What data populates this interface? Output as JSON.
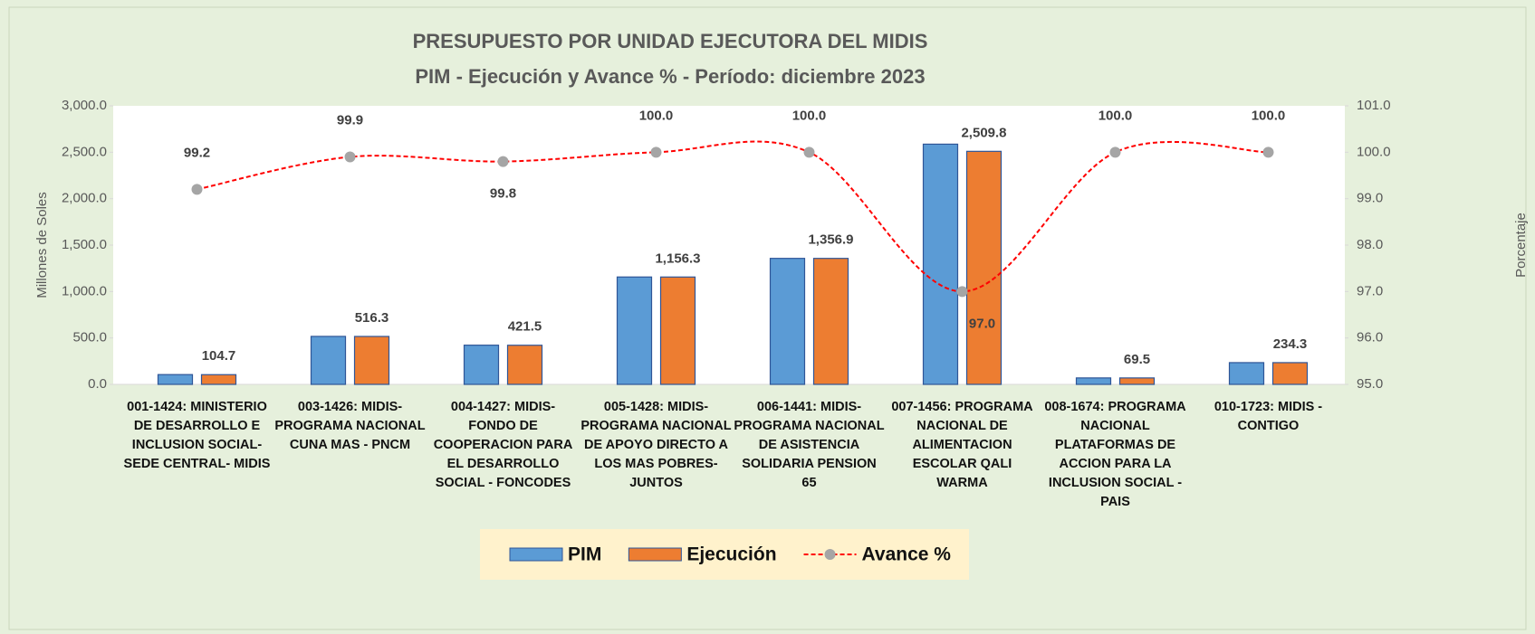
{
  "chart_data": {
    "type": "bar+line",
    "title": "PRESUPUESTO POR UNIDAD EJECUTORA DEL MIDIS",
    "subtitle": "PIM - Ejecución y Avance % - Período: diciembre 2023",
    "y_label": "Millones de Soles",
    "y2_label": "Porcentaje",
    "categories": [
      "001-1424: MINISTERIO DE DESARROLLO E INCLUSION SOCIAL- SEDE CENTRAL- MIDIS",
      "003-1426: MIDIS- PROGRAMA NACIONAL CUNA MAS - PNCM",
      "004-1427: MIDIS- FONDO DE COOPERACION PARA EL DESARROLLO SOCIAL - FONCODES",
      "005-1428: MIDIS- PROGRAMA NACIONAL DE APOYO DIRECTO A LOS MAS POBRES- JUNTOS",
      "006-1441: MIDIS- PROGRAMA NACIONAL DE ASISTENCIA SOLIDARIA PENSION 65",
      "007-1456: PROGRAMA NACIONAL DE ALIMENTACION ESCOLAR QALI WARMA",
      "008-1674: PROGRAMA NACIONAL PLATAFORMAS DE ACCION PARA LA INCLUSION SOCIAL - PAIS",
      "010-1723: MIDIS - CONTIGO"
    ],
    "series": [
      {
        "name": "PIM",
        "type": "bar",
        "color": "#5b9bd5",
        "values": [
          105.5,
          516.8,
          422.3,
          1156.5,
          1357.0,
          2587.0,
          69.6,
          234.3
        ]
      },
      {
        "name": "Ejecución",
        "type": "bar",
        "color": "#ed7d31",
        "values": [
          104.7,
          516.3,
          421.5,
          1156.3,
          1356.9,
          2509.8,
          69.5,
          234.3
        ],
        "value_labels": [
          "104.7",
          "516.3",
          "421.5",
          "1,156.3",
          "1,356.9",
          "2,509.8",
          "69.5",
          "234.3"
        ]
      },
      {
        "name": "Avance %",
        "type": "line",
        "axis": "y2",
        "color": "#ff0000",
        "values": [
          99.2,
          99.9,
          99.8,
          100.0,
          100.0,
          97.0,
          100.0,
          100.0
        ],
        "value_labels": [
          "99.2",
          "99.9",
          "99.8",
          "100.0",
          "100.0",
          "97.0",
          "100.0",
          "100.0"
        ]
      }
    ],
    "ylim": [
      0,
      3000
    ],
    "yticks": [
      {
        "value": 0,
        "label": "0.0"
      },
      {
        "value": 500,
        "label": "500.0"
      },
      {
        "value": 1000,
        "label": "1,000.0"
      },
      {
        "value": 1500,
        "label": "1,500.0"
      },
      {
        "value": 2000,
        "label": "2,000.0"
      },
      {
        "value": 2500,
        "label": "2,500.0"
      },
      {
        "value": 3000,
        "label": "3,000.0"
      }
    ],
    "y2lim": [
      95,
      101
    ],
    "y2ticks": [
      {
        "value": 95,
        "label": "95.0"
      },
      {
        "value": 96,
        "label": "96.0"
      },
      {
        "value": 97,
        "label": "97.0"
      },
      {
        "value": 98,
        "label": "98.0"
      },
      {
        "value": 99,
        "label": "99.0"
      },
      {
        "value": 100,
        "label": "100.0"
      },
      {
        "value": 101,
        "label": "101.0"
      }
    ],
    "grid": false,
    "legend": "bottom"
  }
}
